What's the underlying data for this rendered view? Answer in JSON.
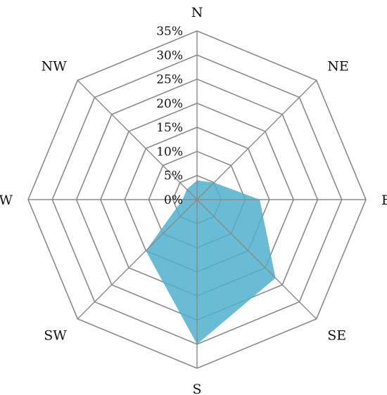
{
  "chart_data": {
    "type": "radar",
    "categories": [
      "N",
      "NE",
      "E",
      "SE",
      "S",
      "SW",
      "W",
      "NW"
    ],
    "series": [
      {
        "values": [
          4,
          5,
          13,
          23,
          30,
          15,
          3,
          3
        ],
        "color": "#4fb0cc"
      }
    ],
    "rlim": [
      0,
      35
    ],
    "tick_values": [
      0,
      5,
      10,
      15,
      20,
      25,
      30,
      35
    ],
    "tick_labels": [
      "0%",
      "5%",
      "10%",
      "15%",
      "20%",
      "25%",
      "30%",
      "35%"
    ],
    "grid": true,
    "grid_color": "#8a8a8a"
  }
}
